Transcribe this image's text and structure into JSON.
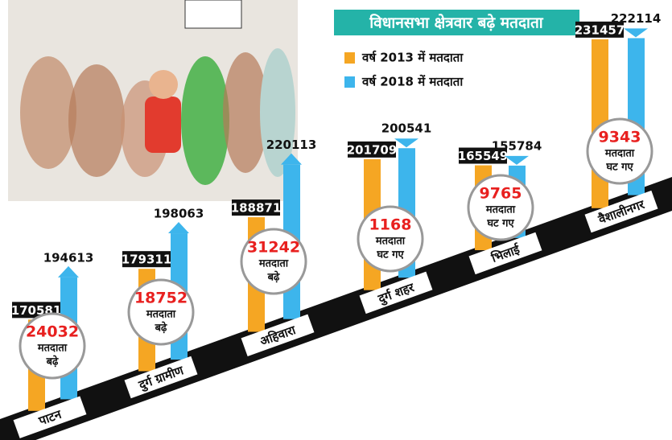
{
  "chart_data": {
    "type": "bar",
    "title": "विधानसभा क्षेत्रवार बढ़े मतदाता",
    "categories": [
      "पाटन",
      "दुर्ग ग्रामीण",
      "अहिवारा",
      "दुर्ग शहर",
      "भिलाई",
      "वैशालीनगर"
    ],
    "series": [
      {
        "name": "वर्ष 2013 में मतदाता",
        "color": "#f5a623",
        "values": [
          170581,
          179311,
          188871,
          201709,
          165549,
          231457
        ]
      },
      {
        "name": "वर्ष 2018 में मतदाता",
        "color": "#3db5ec",
        "values": [
          194613,
          198063,
          220113,
          200541,
          155784,
          222114
        ]
      }
    ],
    "annotations": [
      {
        "value": 24032,
        "lines": [
          "मतदाता",
          "बढ़े"
        ]
      },
      {
        "value": 18752,
        "lines": [
          "मतदाता",
          "बढ़े"
        ]
      },
      {
        "value": 31242,
        "lines": [
          "मतदाता",
          "बढ़े"
        ]
      },
      {
        "value": 1168,
        "lines": [
          "मतदाता",
          "घट गए"
        ]
      },
      {
        "value": 9765,
        "lines": [
          "मतदाता",
          "घट गए"
        ]
      },
      {
        "value": 9343,
        "lines": [
          "मतदाता",
          "घट गए"
        ]
      }
    ]
  }
}
